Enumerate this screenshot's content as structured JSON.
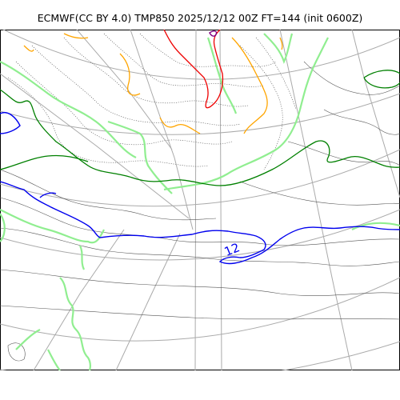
{
  "title": "ECMWF(CC BY 4.0) TMP850 2025/12/12 00Z FT=144 (init 0600Z)",
  "contour_labels": [
    {
      "text": "12",
      "color": "#0000ee"
    }
  ],
  "colors": {
    "graticule": "#aaaaaa",
    "isotherm_thin": "#555555",
    "isotherm_0": "#008000",
    "isotherm_lightgreen": "#90ee90",
    "isotherm_12": "#0000ee",
    "isotherm_orange": "#ffa500",
    "isotherm_red": "#ee0000",
    "isotherm_purple": "#800080"
  }
}
